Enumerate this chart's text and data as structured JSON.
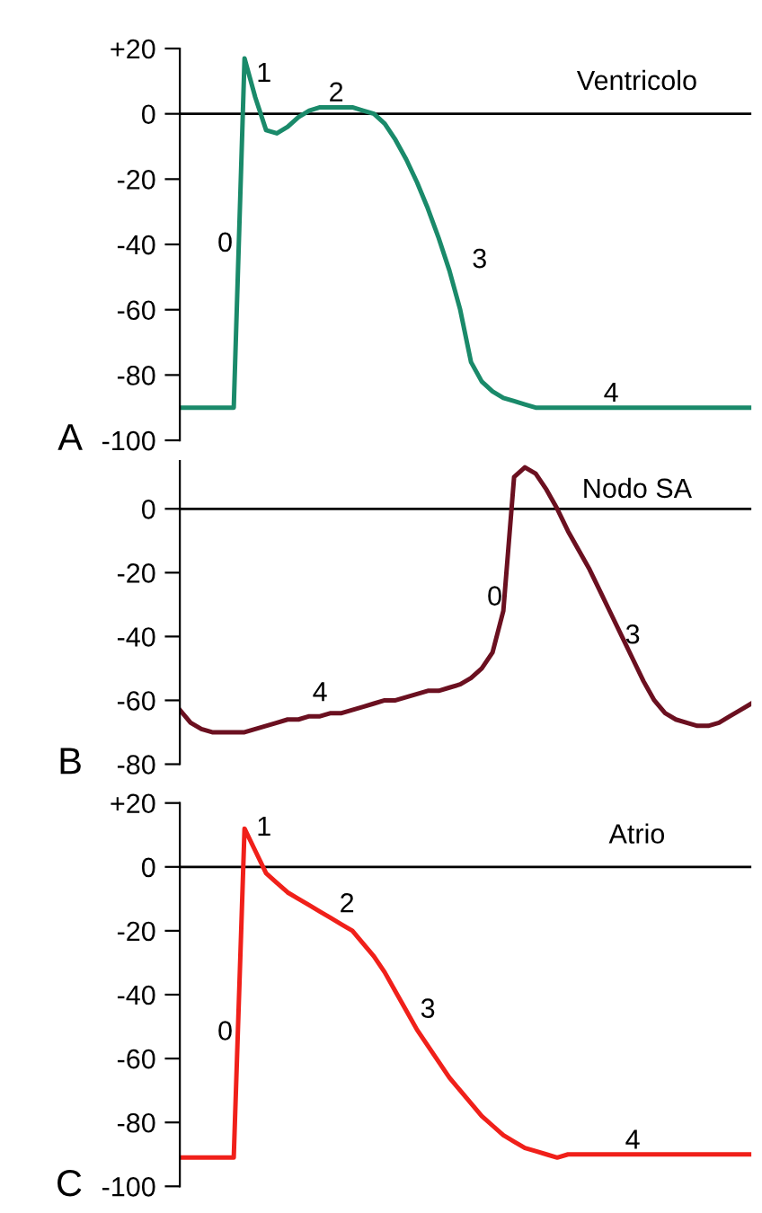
{
  "chart_data": [
    {
      "type": "line",
      "title": "Ventricolo",
      "categories": [
        null,
        null,
        null,
        null,
        null,
        null,
        null,
        null,
        null,
        null,
        null,
        null,
        null,
        null,
        null,
        null,
        null,
        null,
        null,
        null,
        null,
        null,
        null,
        null,
        null,
        null,
        null,
        null,
        null,
        null,
        null,
        null,
        null,
        null,
        null,
        null,
        null,
        null,
        null,
        null,
        null,
        null,
        null,
        null,
        null,
        null,
        null,
        null,
        null,
        null,
        null,
        null,
        null,
        null
      ],
      "series": [
        {
          "color": "#1a8a6a",
          "values": [
            -90,
            -90,
            -90,
            -90,
            -90,
            -90,
            17,
            5,
            -5,
            -6,
            -4,
            -1,
            1,
            2,
            2,
            2,
            2,
            1,
            0,
            -3,
            -8,
            -14,
            -21,
            -29,
            -38,
            -48,
            -60,
            -76,
            -82,
            -85,
            -87,
            -88,
            -89,
            -90,
            -90,
            -90,
            -90,
            -90,
            -90,
            -90,
            -90,
            -90,
            -90,
            -90,
            -90,
            -90,
            -90,
            -90,
            -90,
            -90,
            -90,
            -90,
            -90,
            -90
          ]
        }
      ],
      "ylim": [
        -100,
        20
      ],
      "yticks": [
        {
          "value": 20,
          "label": "+20"
        },
        0,
        -20,
        -40,
        -60,
        -80,
        -100
      ],
      "tick_labels": "y",
      "grid": false,
      "legend": false,
      "ref_lines": [
        {
          "axis": "y",
          "value": 0,
          "color": "#000000"
        }
      ],
      "annotations": [
        "A",
        "0",
        "1",
        "2",
        "3",
        "4"
      ]
    },
    {
      "type": "line",
      "title": "Nodo SA",
      "categories": [
        null,
        null,
        null,
        null,
        null,
        null,
        null,
        null,
        null,
        null,
        null,
        null,
        null,
        null,
        null,
        null,
        null,
        null,
        null,
        null,
        null,
        null,
        null,
        null,
        null,
        null,
        null,
        null,
        null,
        null,
        null,
        null,
        null,
        null,
        null,
        null,
        null,
        null,
        null,
        null,
        null,
        null,
        null,
        null,
        null,
        null,
        null,
        null,
        null,
        null,
        null,
        null,
        null,
        null
      ],
      "series": [
        {
          "color": "#6b1020",
          "values": [
            -63,
            -67,
            -69,
            -70,
            -70,
            -70,
            -70,
            -69,
            -68,
            -67,
            -66,
            -66,
            -65,
            -65,
            -64,
            -64,
            -63,
            -62,
            -61,
            -60,
            -60,
            -59,
            -58,
            -57,
            -57,
            -56,
            -55,
            -53,
            -50,
            -45,
            -32,
            10,
            13,
            11,
            6,
            0,
            -7,
            -13,
            -19,
            -26,
            -33,
            -40,
            -47,
            -54,
            -60,
            -64,
            -66,
            -67,
            -68,
            -68,
            -67,
            -65,
            -63,
            -61
          ]
        }
      ],
      "ylim": [
        -80,
        15
      ],
      "yticks": [
        0,
        -20,
        -40,
        -60,
        -80
      ],
      "tick_labels": "y",
      "grid": false,
      "legend": false,
      "ref_lines": [
        {
          "axis": "y",
          "value": 0,
          "color": "#000000"
        }
      ],
      "annotations": [
        "B",
        "0",
        "3",
        "4"
      ]
    },
    {
      "type": "line",
      "title": "Atrio",
      "categories": [
        null,
        null,
        null,
        null,
        null,
        null,
        null,
        null,
        null,
        null,
        null,
        null,
        null,
        null,
        null,
        null,
        null,
        null,
        null,
        null,
        null,
        null,
        null,
        null,
        null,
        null,
        null,
        null,
        null,
        null,
        null,
        null,
        null,
        null,
        null,
        null,
        null,
        null,
        null,
        null,
        null,
        null,
        null,
        null,
        null,
        null,
        null,
        null,
        null,
        null,
        null,
        null,
        null,
        null
      ],
      "series": [
        {
          "color": "#f0201a",
          "values": [
            -91,
            -91,
            -91,
            -91,
            -91,
            -91,
            12,
            5,
            -2,
            -5,
            -8,
            -10,
            -12,
            -14,
            -16,
            -18,
            -20,
            -24,
            -28,
            -33,
            -39,
            -45,
            -51,
            -56,
            -61,
            -66,
            -70,
            -74,
            -78,
            -81,
            -84,
            -86,
            -88,
            -89,
            -90,
            -91,
            -90,
            -90,
            -90,
            -90,
            -90,
            -90,
            -90,
            -90,
            -90,
            -90,
            -90,
            -90,
            -90,
            -90,
            -90,
            -90,
            -90,
            -90
          ]
        }
      ],
      "ylim": [
        -100,
        20
      ],
      "yticks": [
        {
          "value": 20,
          "label": "+20"
        },
        0,
        -20,
        -40,
        -60,
        -80,
        -100
      ],
      "tick_labels": "y",
      "grid": false,
      "legend": false,
      "ref_lines": [
        {
          "axis": "y",
          "value": 0,
          "color": "#000000"
        }
      ],
      "annotations": [
        "C",
        "0",
        "1",
        "2",
        "3",
        "4"
      ]
    }
  ]
}
